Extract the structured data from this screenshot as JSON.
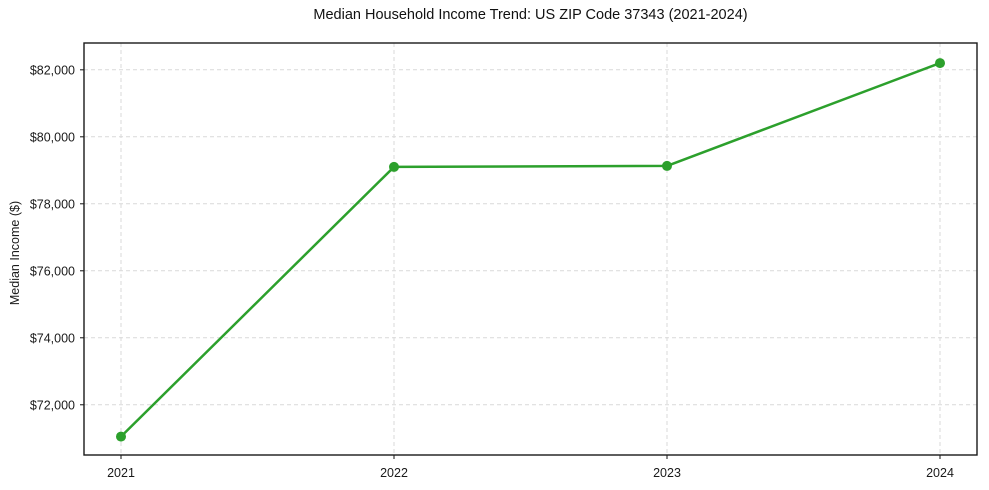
{
  "figure": {
    "background": "#ffffff",
    "border_color": "#1a1a1a",
    "grid_color": "#d9d9d9"
  },
  "chart_data": {
    "type": "line",
    "title": "Median Household Income Trend: US ZIP Code 37343 (2021-2024)",
    "xlabel": "",
    "ylabel": "Median Income ($)",
    "categories": [
      "2021",
      "2022",
      "2023",
      "2024"
    ],
    "series": [
      {
        "name": "Median household income",
        "values": [
          71050,
          79100,
          79130,
          82200
        ],
        "color": "#2ca02c",
        "marker": "circle",
        "line_width": 2.5,
        "marker_diameter": 10
      }
    ],
    "y_ticks": [
      72000,
      74000,
      76000,
      78000,
      80000,
      82000
    ],
    "y_tick_labels": [
      "$72,000",
      "$74,000",
      "$76,000",
      "$78,000",
      "$80,000",
      "$82,000"
    ],
    "ylim": [
      70500,
      82800
    ],
    "grid": true,
    "grid_style": "dashed",
    "legend_position": "none"
  }
}
